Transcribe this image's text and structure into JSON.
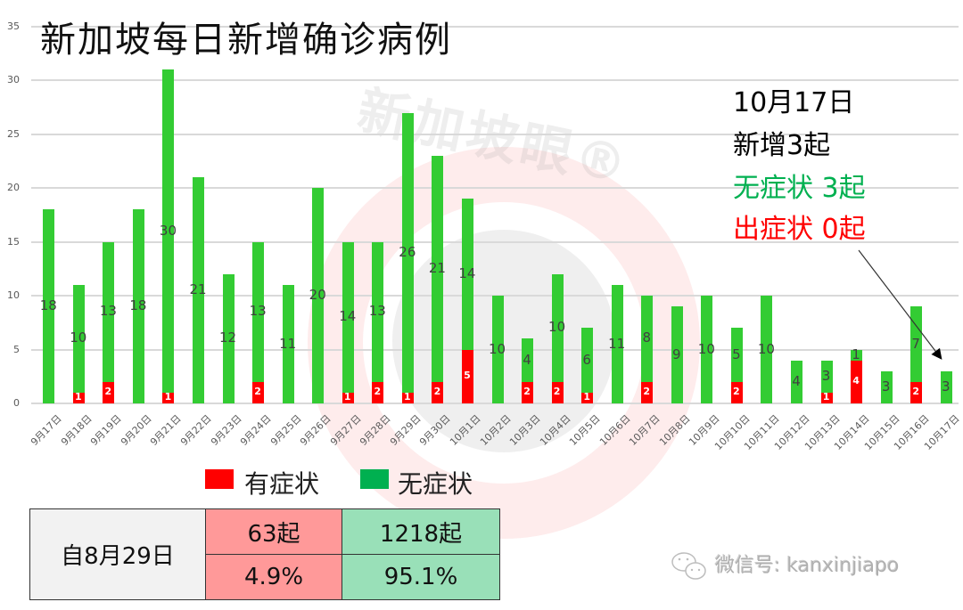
{
  "chart_data": {
    "type": "bar",
    "stacked": true,
    "title": "新加坡每日新增确诊病例",
    "xlabel": "",
    "ylabel": "",
    "ylim": [
      0,
      35
    ],
    "yticks": [
      0,
      5,
      10,
      15,
      20,
      25,
      30,
      35
    ],
    "grid": true,
    "categories": [
      "9月17日",
      "9月18日",
      "9月19日",
      "9月20日",
      "9月21日",
      "9月22日",
      "9月23日",
      "9月24日",
      "9月25日",
      "9月26日",
      "9月27日",
      "9月28日",
      "9月29日",
      "9月30日",
      "10月1日",
      "10月2日",
      "10月3日",
      "10月4日",
      "10月5日",
      "10月6日",
      "10月7日",
      "10月8日",
      "10月9日",
      "10月10日",
      "10月11日",
      "10月12日",
      "10月13日",
      "10月14日",
      "10月15日",
      "10月16日",
      "10月17日"
    ],
    "series": [
      {
        "name": "有症状",
        "color": "#ff0000",
        "values": [
          0,
          1,
          2,
          0,
          1,
          0,
          0,
          2,
          0,
          0,
          1,
          2,
          1,
          2,
          5,
          0,
          2,
          2,
          1,
          0,
          2,
          0,
          0,
          2,
          0,
          0,
          1,
          4,
          0,
          2,
          0
        ]
      },
      {
        "name": "无症状",
        "color": "#33cc33",
        "values": [
          18,
          10,
          13,
          18,
          30,
          21,
          12,
          13,
          11,
          20,
          14,
          13,
          26,
          21,
          14,
          10,
          4,
          10,
          6,
          11,
          8,
          9,
          10,
          5,
          10,
          4,
          3,
          1,
          3,
          7,
          3
        ]
      }
    ],
    "legend": {
      "position": "bottom",
      "entries": [
        {
          "label": "有症状",
          "color": "#ff0000"
        },
        {
          "label": "无症状",
          "color": "#00b050"
        }
      ]
    },
    "annotations": [
      {
        "text": "10月17日",
        "color": "#000000"
      },
      {
        "text": "新增3起",
        "color": "#000000"
      },
      {
        "text": "无症状 3起",
        "color": "#00b050"
      },
      {
        "text": "出症状 0起",
        "color": "#ff0000"
      }
    ]
  },
  "title": "新加坡每日新增确诊病例",
  "annotation": {
    "date": "10月17日",
    "new_cases": "新增3起",
    "asymptomatic": "无症状 3起",
    "symptomatic": "出症状 0起"
  },
  "legend": {
    "symptomatic": "有症状",
    "asymptomatic": "无症状"
  },
  "summary": {
    "label": "自8月29日",
    "symptomatic_count": "63起",
    "asymptomatic_count": "1218起",
    "symptomatic_pct": "4.9%",
    "asymptomatic_pct": "95.1%"
  },
  "watermark": {
    "brand": "新加坡眼®",
    "wechat": "微信号: kanxinjiapo"
  },
  "colors": {
    "symptomatic": "#ff0000",
    "asymptomatic_bar": "#33cc33",
    "asymptomatic_legend": "#00b050",
    "summary_red": "#ff9999",
    "summary_green": "#99e0b8"
  }
}
